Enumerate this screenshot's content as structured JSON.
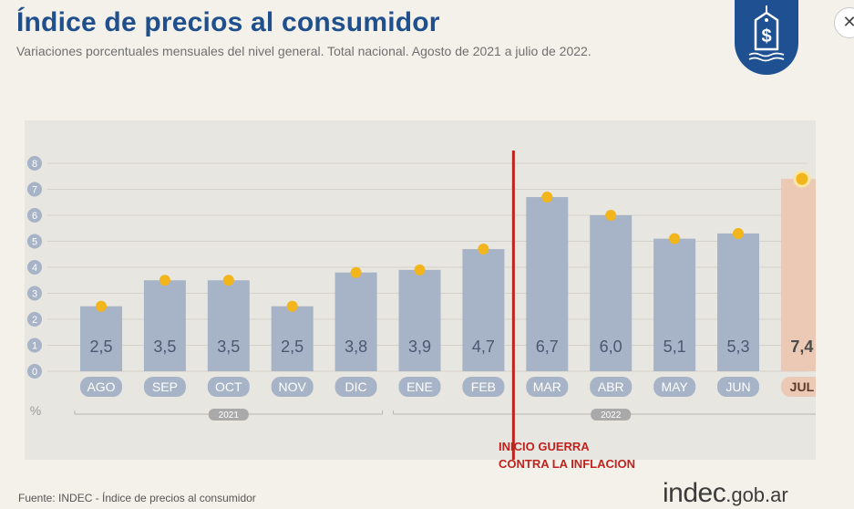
{
  "header": {
    "title": "Índice de precios al consumidor",
    "subtitle": "Variaciones porcentuales mensuales del nivel general. Total nacional. Agosto de 2021 a julio de 2022."
  },
  "logo": {
    "icon": "price-tag-dollar-icon",
    "color": "#1f5192"
  },
  "close_label": "✕",
  "annotation": {
    "line1": "INICIO GUERRA",
    "line2": "CONTRA LA INFLACION"
  },
  "footer": {
    "source": "Fuente: INDEC - Índice de precios al consumidor",
    "brand_main": "indec",
    "brand_suffix": ".gob.ar"
  },
  "chart_data": {
    "type": "bar",
    "categories": [
      "AGO",
      "SEP",
      "OCT",
      "NOV",
      "DIC",
      "ENE",
      "FEB",
      "MAR",
      "ABR",
      "MAY",
      "JUN",
      "JUL"
    ],
    "values": [
      2.5,
      3.5,
      3.5,
      2.5,
      3.8,
      3.9,
      4.7,
      6.7,
      6.0,
      5.1,
      5.3,
      7.4
    ],
    "value_labels": [
      "2,5",
      "3,5",
      "3,5",
      "2,5",
      "3,8",
      "3,9",
      "4,7",
      "6,7",
      "6,0",
      "5,1",
      "5,3",
      "7,4"
    ],
    "y_ticks": [
      0,
      1,
      2,
      3,
      4,
      5,
      6,
      7,
      8
    ],
    "ylim": [
      0,
      8
    ],
    "unit_label": "%",
    "years": [
      {
        "label": "2021",
        "from": "AGO",
        "to": "DIC"
      },
      {
        "label": "2022",
        "from": "ENE",
        "to": "JUL"
      }
    ],
    "highlight_category": "JUL",
    "marker_line_between": [
      "FEB",
      "MAR"
    ],
    "grid": true,
    "colors": {
      "bar": "#a7b3c6",
      "bar_highlight": "#ecc9b5",
      "label_box": "#a7b3c6",
      "label_box_highlight": "#ecc9b5",
      "dot": "#f2b51b",
      "marker_line": "#c0231d",
      "value_text": "#4a5872",
      "value_text_highlight": "#4a4a4a"
    }
  }
}
